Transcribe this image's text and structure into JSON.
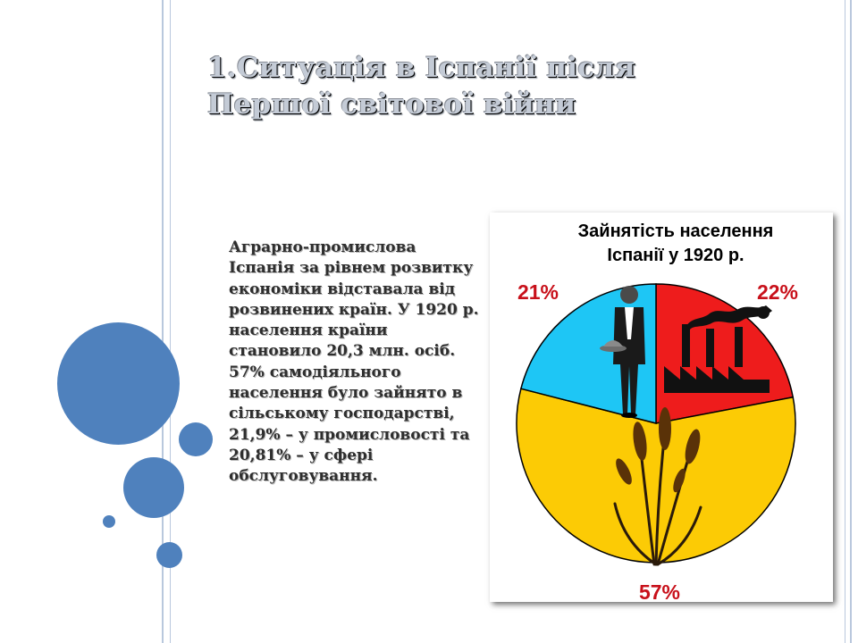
{
  "slide": {
    "title": "1.Ситуація в Іспанії після Першої світової війни",
    "body": "Аграрно-промислова Іспанія за рівнем розвитку економіки відставала від розвинених країн. У 1920 р. населення країни становило 20,3 млн. осіб. 57% самодіяльного населення було зайнято в сільському господарстві, 21,9% – у промисловості та 20,81% – у сфері обслуговування."
  },
  "chart_data": {
    "type": "pie",
    "title_line1": "Зайнятість населення",
    "title_line2": "Іспанії у 1920 р.",
    "slices": [
      {
        "label": "22%",
        "value": 22,
        "color": "#ee1c1c",
        "icon": "factory-icon"
      },
      {
        "label": "57%",
        "value": 57,
        "color": "#fccb05",
        "icon": "wheat-icon"
      },
      {
        "label": "21%",
        "value": 21,
        "color": "#1ec6f5",
        "icon": "waiter-icon"
      }
    ],
    "label_color": "#c8101a"
  }
}
